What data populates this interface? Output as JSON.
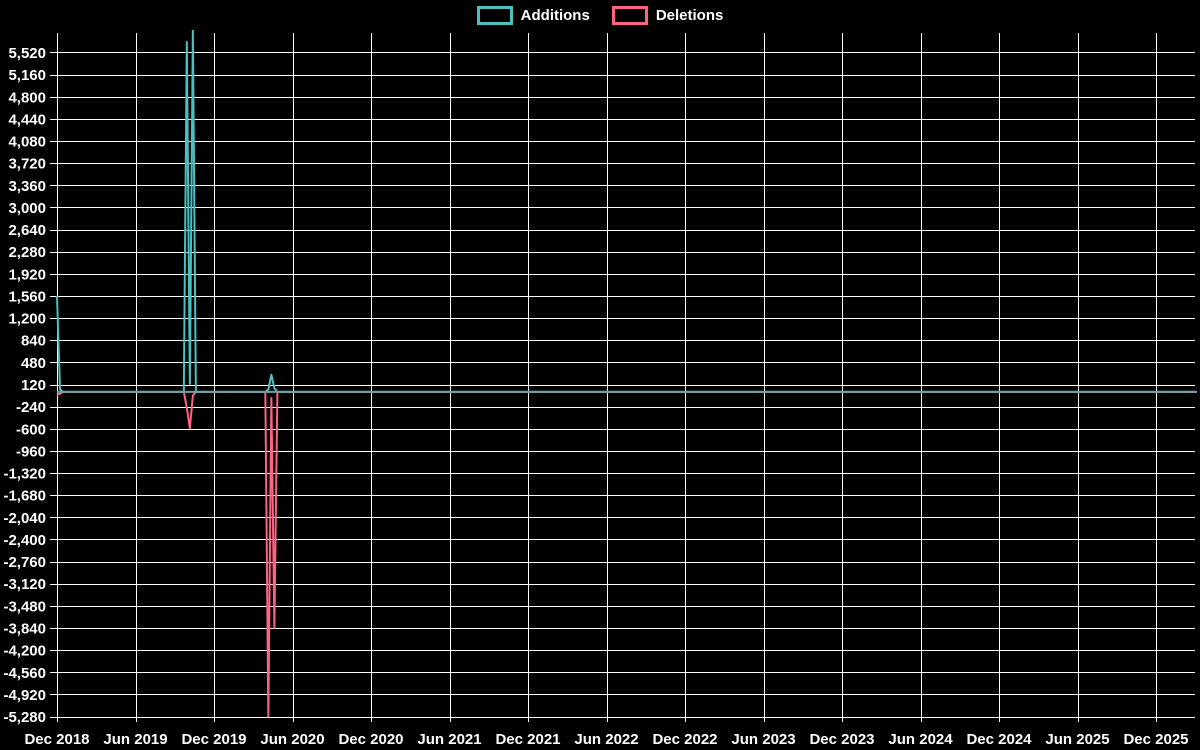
{
  "chart_data": {
    "type": "line",
    "title": "",
    "xlabel": "",
    "ylabel": "",
    "background_color": "#000000",
    "grid_color": "#ffffff",
    "text_color": "#ffffff",
    "zero_overlap_line_color": "#7a9ba3",
    "legend_position": "top-center",
    "grid": true,
    "x_axis": {
      "tick_labels": [
        "Dec 2018",
        "Jun 2019",
        "Dec 2019",
        "Jun 2020",
        "Dec 2020",
        "Jun 2021",
        "Dec 2021",
        "Jun 2022",
        "Dec 2022",
        "Jun 2023",
        "Dec 2023",
        "Jun 2024",
        "Dec 2024",
        "Jun 2025",
        "Dec 2025"
      ]
    },
    "y_axis": {
      "tick_values": [
        5520,
        5160,
        4800,
        4440,
        4080,
        3720,
        3360,
        3000,
        2640,
        2280,
        1920,
        1560,
        1200,
        840,
        480,
        120,
        -240,
        -600,
        -960,
        -1320,
        -1680,
        -2040,
        -2400,
        -2760,
        -3120,
        -3480,
        -3840,
        -4200,
        -4560,
        -4920,
        -5280
      ],
      "tick_step": 360,
      "ylim": [
        -5369,
        5837
      ]
    },
    "week0_date": "2018-12-02",
    "weeks_total": 377,
    "default_value": 0,
    "series": [
      {
        "name": "Additions",
        "color": "#4bc0c0",
        "points": [
          {
            "week": 0,
            "date": "2018-12-02",
            "value": 1560
          },
          {
            "week": 1,
            "date": "2018-12-09",
            "value": 40
          },
          {
            "week": 43,
            "date": "2019-09-29",
            "value": 5690
          },
          {
            "week": 44,
            "date": "2019-10-06",
            "value": 130
          },
          {
            "week": 45,
            "date": "2019-10-13",
            "value": 5880
          },
          {
            "week": 70,
            "date": "2020-04-05",
            "value": 40
          },
          {
            "week": 71,
            "date": "2020-04-12",
            "value": 280
          },
          {
            "week": 72,
            "date": "2020-04-19",
            "value": 60
          }
        ]
      },
      {
        "name": "Deletions",
        "color": "#ff6384",
        "points": [
          {
            "week": 0,
            "date": "2018-12-02",
            "value": -50
          },
          {
            "week": 1,
            "date": "2018-12-09",
            "value": -30
          },
          {
            "week": 43,
            "date": "2019-09-29",
            "value": -260
          },
          {
            "week": 44,
            "date": "2019-10-06",
            "value": -590
          },
          {
            "week": 45,
            "date": "2019-10-13",
            "value": -60
          },
          {
            "week": 70,
            "date": "2020-04-05",
            "value": -5280
          },
          {
            "week": 71,
            "date": "2020-04-12",
            "value": -100
          },
          {
            "week": 72,
            "date": "2020-04-19",
            "value": -3840
          }
        ]
      }
    ]
  }
}
